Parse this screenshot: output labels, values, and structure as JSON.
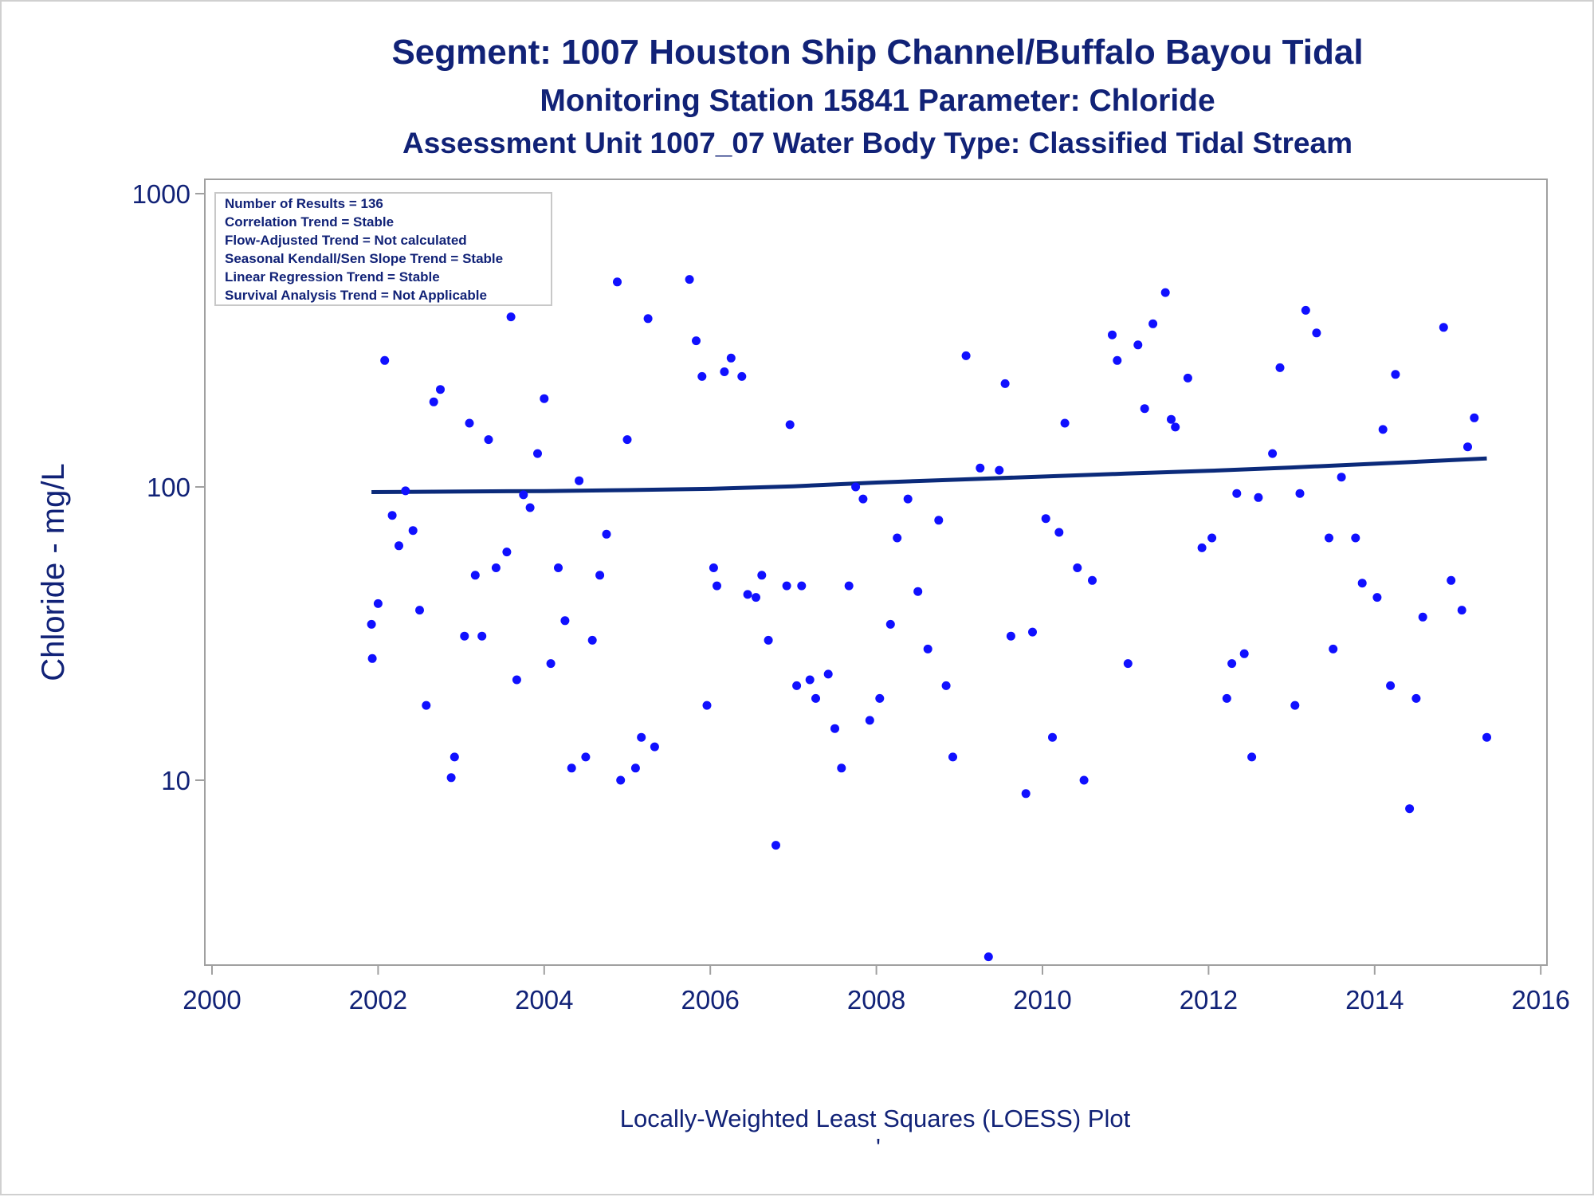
{
  "titles": {
    "line1": "Segment: 1007  Houston Ship Channel/Buffalo Bayou Tidal",
    "line2": "Monitoring Station 15841 Parameter: Chloride",
    "line3": "Assessment Unit 1007_07   Water Body Type: Classified Tidal Stream"
  },
  "footnote": "Locally-Weighted Least Squares (LOESS) Plot",
  "footnote_mark": "'",
  "stats_box": [
    "Number of Results = 136",
    "Correlation Trend = Stable",
    "Flow-Adjusted Trend = Not calculated",
    "Seasonal Kendall/Sen Slope Trend = Stable",
    "Linear Regression Trend = Stable",
    "Survival Analysis Trend = Not Applicable"
  ],
  "colors": {
    "points": "#1010ff",
    "trend_line": "#0b2a7a",
    "text": "#112277",
    "axis": "#a0a0a0"
  },
  "chart_data": {
    "type": "scatter",
    "ylabel": "Chloride - mg/L",
    "yscale": "log",
    "xlim": [
      2000,
      2016
    ],
    "ylim": [
      2.5,
      1000
    ],
    "x_ticks": [
      "2000",
      "2002",
      "2004",
      "2006",
      "2008",
      "2010",
      "2012",
      "2014",
      "2016"
    ],
    "y_ticks": [
      "10",
      "100",
      "1000"
    ],
    "grid": false,
    "legend": "top-left",
    "points": [
      [
        2001.92,
        34
      ],
      [
        2001.93,
        26
      ],
      [
        2002.0,
        40
      ],
      [
        2002.08,
        270
      ],
      [
        2002.17,
        80
      ],
      [
        2002.25,
        63
      ],
      [
        2002.33,
        97
      ],
      [
        2002.42,
        71
      ],
      [
        2002.5,
        38
      ],
      [
        2002.58,
        18
      ],
      [
        2002.67,
        195
      ],
      [
        2002.75,
        215
      ],
      [
        2002.88,
        10.2
      ],
      [
        2002.92,
        12
      ],
      [
        2003.04,
        31
      ],
      [
        2003.1,
        165
      ],
      [
        2003.17,
        50
      ],
      [
        2003.25,
        31
      ],
      [
        2003.33,
        145
      ],
      [
        2003.42,
        53
      ],
      [
        2003.55,
        60
      ],
      [
        2003.6,
        380
      ],
      [
        2003.67,
        22
      ],
      [
        2003.75,
        94
      ],
      [
        2003.83,
        85
      ],
      [
        2003.92,
        130
      ],
      [
        2004.0,
        200
      ],
      [
        2004.08,
        25
      ],
      [
        2004.17,
        53
      ],
      [
        2004.25,
        35
      ],
      [
        2004.33,
        11
      ],
      [
        2004.42,
        105
      ],
      [
        2004.5,
        12
      ],
      [
        2004.58,
        30
      ],
      [
        2004.67,
        50
      ],
      [
        2004.75,
        69
      ],
      [
        2004.88,
        500
      ],
      [
        2004.92,
        10
      ],
      [
        2005.0,
        145
      ],
      [
        2005.1,
        11
      ],
      [
        2005.17,
        14
      ],
      [
        2005.25,
        375
      ],
      [
        2005.33,
        13
      ],
      [
        2005.75,
        510
      ],
      [
        2005.83,
        315
      ],
      [
        2005.9,
        238
      ],
      [
        2005.96,
        18
      ],
      [
        2006.04,
        53
      ],
      [
        2006.08,
        46
      ],
      [
        2006.17,
        247
      ],
      [
        2006.25,
        275
      ],
      [
        2006.38,
        238
      ],
      [
        2006.45,
        43
      ],
      [
        2006.55,
        42
      ],
      [
        2006.62,
        50
      ],
      [
        2006.7,
        30
      ],
      [
        2006.79,
        6
      ],
      [
        2006.92,
        46
      ],
      [
        2006.96,
        163
      ],
      [
        2007.04,
        21
      ],
      [
        2007.1,
        46
      ],
      [
        2007.2,
        22
      ],
      [
        2007.27,
        19
      ],
      [
        2007.42,
        23
      ],
      [
        2007.5,
        15
      ],
      [
        2007.58,
        11
      ],
      [
        2007.67,
        46
      ],
      [
        2007.75,
        100
      ],
      [
        2007.84,
        91
      ],
      [
        2007.92,
        16
      ],
      [
        2008.04,
        19
      ],
      [
        2008.17,
        34
      ],
      [
        2008.25,
        67
      ],
      [
        2008.38,
        91
      ],
      [
        2008.5,
        44
      ],
      [
        2008.62,
        28
      ],
      [
        2008.75,
        77
      ],
      [
        2008.84,
        21
      ],
      [
        2008.92,
        12
      ],
      [
        2009.08,
        280
      ],
      [
        2009.25,
        116
      ],
      [
        2009.35,
        2.5
      ],
      [
        2009.48,
        114
      ],
      [
        2009.55,
        225
      ],
      [
        2009.62,
        31
      ],
      [
        2009.8,
        9
      ],
      [
        2009.88,
        32
      ],
      [
        2010.04,
        78
      ],
      [
        2010.12,
        14
      ],
      [
        2010.2,
        70
      ],
      [
        2010.27,
        165
      ],
      [
        2010.42,
        53
      ],
      [
        2010.5,
        10
      ],
      [
        2010.6,
        48
      ],
      [
        2010.84,
        330
      ],
      [
        2010.9,
        270
      ],
      [
        2011.03,
        25
      ],
      [
        2011.15,
        305
      ],
      [
        2011.23,
        185
      ],
      [
        2011.33,
        360
      ],
      [
        2011.48,
        460
      ],
      [
        2011.55,
        170
      ],
      [
        2011.6,
        160
      ],
      [
        2011.75,
        235
      ],
      [
        2011.92,
        62
      ],
      [
        2012.04,
        67
      ],
      [
        2012.22,
        19
      ],
      [
        2012.28,
        25
      ],
      [
        2012.34,
        95
      ],
      [
        2012.43,
        27
      ],
      [
        2012.52,
        12
      ],
      [
        2012.6,
        92
      ],
      [
        2012.77,
        130
      ],
      [
        2012.86,
        255
      ],
      [
        2013.04,
        18
      ],
      [
        2013.1,
        95
      ],
      [
        2013.17,
        400
      ],
      [
        2013.3,
        335
      ],
      [
        2013.45,
        67
      ],
      [
        2013.5,
        28
      ],
      [
        2013.6,
        108
      ],
      [
        2013.77,
        67
      ],
      [
        2013.85,
        47
      ],
      [
        2014.03,
        42
      ],
      [
        2014.1,
        157
      ],
      [
        2014.19,
        21
      ],
      [
        2014.25,
        242
      ],
      [
        2014.42,
        8
      ],
      [
        2014.5,
        19
      ],
      [
        2014.58,
        36
      ],
      [
        2014.83,
        350
      ],
      [
        2014.92,
        48
      ],
      [
        2015.05,
        38
      ],
      [
        2015.12,
        137
      ],
      [
        2015.2,
        172
      ],
      [
        2015.35,
        14
      ]
    ],
    "trend": [
      [
        2001.92,
        96
      ],
      [
        2003.0,
        96.5
      ],
      [
        2004.0,
        96.8
      ],
      [
        2005.0,
        97.5
      ],
      [
        2006.0,
        98.5
      ],
      [
        2007.0,
        100.5
      ],
      [
        2008.0,
        103.5
      ],
      [
        2009.0,
        106
      ],
      [
        2010.0,
        108.5
      ],
      [
        2011.0,
        111
      ],
      [
        2012.0,
        113.5
      ],
      [
        2013.0,
        116.5
      ],
      [
        2014.0,
        120
      ],
      [
        2015.35,
        125
      ]
    ]
  }
}
